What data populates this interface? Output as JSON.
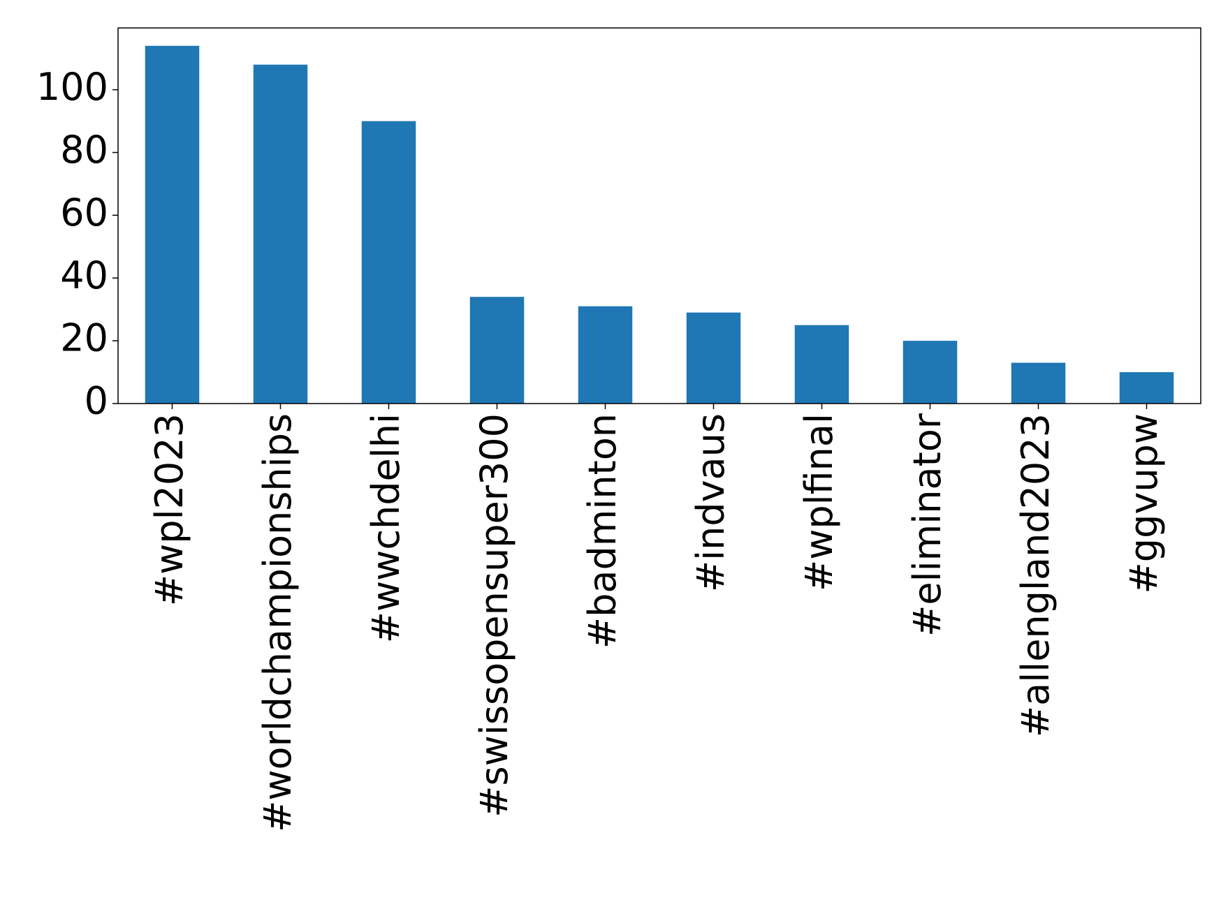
{
  "chart_data": {
    "type": "bar",
    "categories": [
      "#wpl2023",
      "#worldchampionships",
      "#wwchdelhi",
      "#swissopensuper300",
      "#badminton",
      "#indvaus",
      "#wplfinal",
      "#eliminator",
      "#allengland2023",
      "#ggvupw"
    ],
    "values": [
      114,
      108,
      90,
      34,
      31,
      29,
      25,
      20,
      13,
      10
    ],
    "color": "#1f77b4",
    "ylim": [
      0,
      119.7
    ],
    "yticks": [
      0,
      20,
      40,
      60,
      80,
      100
    ],
    "grid": false
  }
}
